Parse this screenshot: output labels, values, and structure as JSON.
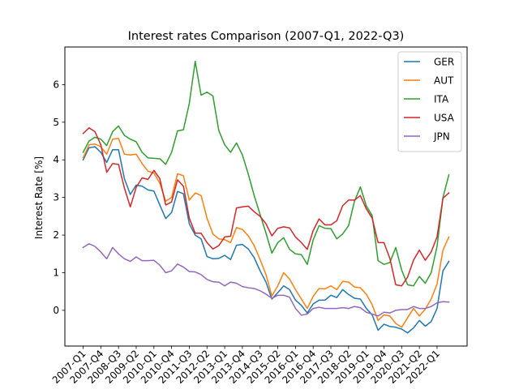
{
  "chart_data": {
    "type": "line",
    "title": "Interest rates Comparison (2007-Q1, 2022-Q3)",
    "xlabel": "",
    "ylabel": "Interest Rate [%]",
    "ylim": [
      -0.95,
      7.0
    ],
    "yticks": [
      0,
      1,
      2,
      3,
      4,
      5,
      6
    ],
    "grid": false,
    "legend_position": "top-right",
    "x": [
      "2007-Q1",
      "2007-Q2",
      "2007-Q3",
      "2007-Q4",
      "2008-Q1",
      "2008-Q2",
      "2008-Q3",
      "2008-Q4",
      "2009-Q1",
      "2009-Q2",
      "2009-Q3",
      "2009-Q4",
      "2010-Q1",
      "2010-Q2",
      "2010-Q3",
      "2010-Q4",
      "2011-Q1",
      "2011-Q2",
      "2011-Q3",
      "2011-Q4",
      "2012-Q1",
      "2012-Q2",
      "2012-Q3",
      "2012-Q4",
      "2013-Q1",
      "2013-Q2",
      "2013-Q3",
      "2013-Q4",
      "2014-Q1",
      "2014-Q2",
      "2014-Q3",
      "2014-Q4",
      "2015-Q1",
      "2015-Q2",
      "2015-Q3",
      "2015-Q4",
      "2016-Q1",
      "2016-Q2",
      "2016-Q3",
      "2016-Q4",
      "2017-Q1",
      "2017-Q2",
      "2017-Q3",
      "2017-Q4",
      "2018-Q1",
      "2018-Q2",
      "2018-Q3",
      "2018-Q4",
      "2019-Q1",
      "2019-Q2",
      "2019-Q3",
      "2019-Q4",
      "2020-Q1",
      "2020-Q2",
      "2020-Q3",
      "2020-Q4",
      "2021-Q1",
      "2021-Q2",
      "2021-Q3",
      "2021-Q4",
      "2022-Q1",
      "2022-Q2",
      "2022-Q3"
    ],
    "xtick_labels": [
      "2007-Q1",
      "2007-Q4",
      "2008-Q3",
      "2009-Q2",
      "2010-Q1",
      "2010-Q4",
      "2011-Q3",
      "2012-Q2",
      "2013-Q1",
      "2013-Q4",
      "2014-Q3",
      "2015-Q2",
      "2016-Q1",
      "2016-Q4",
      "2017-Q3",
      "2018-Q2",
      "2019-Q1",
      "2019-Q4",
      "2020-Q3",
      "2021-Q2",
      "2022-Q1"
    ],
    "series": [
      {
        "name": "GER",
        "color": "#1f77b4",
        "values": [
          4.0,
          4.32,
          4.35,
          4.2,
          3.93,
          4.27,
          4.27,
          3.5,
          3.08,
          3.33,
          3.3,
          3.2,
          3.17,
          2.8,
          2.44,
          2.6,
          3.16,
          3.1,
          2.3,
          2.0,
          1.9,
          1.43,
          1.37,
          1.38,
          1.46,
          1.35,
          1.73,
          1.75,
          1.63,
          1.4,
          1.05,
          0.75,
          0.3,
          0.47,
          0.65,
          0.55,
          0.27,
          0.13,
          -0.07,
          0.17,
          0.27,
          0.27,
          0.4,
          0.34,
          0.55,
          0.42,
          0.32,
          0.3,
          0.05,
          -0.12,
          -0.53,
          -0.37,
          -0.43,
          -0.45,
          -0.5,
          -0.6,
          -0.47,
          -0.27,
          -0.42,
          -0.3,
          0.05,
          1.05,
          1.3
        ]
      },
      {
        "name": "AUT",
        "color": "#ff7f0e",
        "values": [
          4.05,
          4.4,
          4.42,
          4.35,
          4.15,
          4.55,
          4.57,
          4.15,
          4.13,
          4.15,
          3.9,
          3.7,
          3.65,
          3.38,
          2.9,
          3.0,
          3.63,
          3.58,
          2.93,
          3.12,
          3.05,
          2.45,
          2.03,
          1.9,
          1.88,
          1.8,
          2.2,
          2.15,
          1.98,
          1.72,
          1.35,
          0.95,
          0.38,
          0.65,
          1.0,
          0.83,
          0.55,
          0.3,
          0.05,
          0.37,
          0.58,
          0.57,
          0.65,
          0.55,
          0.77,
          0.75,
          0.62,
          0.6,
          0.43,
          0.15,
          -0.27,
          -0.12,
          -0.15,
          -0.35,
          -0.45,
          -0.2,
          0.05,
          -0.15,
          0.03,
          0.3,
          0.7,
          1.6,
          1.95
        ]
      },
      {
        "name": "ITA",
        "color": "#2ca02c",
        "values": [
          4.2,
          4.5,
          4.6,
          4.55,
          4.38,
          4.75,
          4.9,
          4.65,
          4.55,
          4.48,
          4.2,
          4.05,
          4.04,
          4.03,
          3.88,
          4.2,
          4.77,
          4.8,
          5.5,
          6.62,
          5.72,
          5.8,
          5.7,
          4.78,
          4.4,
          4.2,
          4.45,
          4.13,
          3.62,
          3.05,
          2.55,
          2.05,
          1.52,
          1.8,
          1.93,
          1.62,
          1.5,
          1.48,
          1.22,
          1.87,
          2.25,
          2.18,
          2.17,
          1.9,
          2.03,
          2.25,
          2.9,
          3.28,
          2.78,
          2.52,
          1.32,
          1.22,
          1.27,
          1.67,
          1.07,
          0.68,
          0.65,
          0.9,
          0.72,
          1.0,
          1.7,
          3.0,
          3.6
        ]
      },
      {
        "name": "USA",
        "color": "#d62728",
        "values": [
          4.7,
          4.85,
          4.75,
          4.4,
          3.67,
          3.9,
          3.88,
          3.25,
          2.75,
          3.27,
          3.52,
          3.48,
          3.72,
          3.5,
          2.8,
          2.88,
          3.47,
          3.3,
          2.45,
          2.05,
          2.05,
          1.8,
          1.63,
          1.72,
          1.95,
          1.97,
          2.72,
          2.75,
          2.77,
          2.62,
          2.5,
          2.3,
          1.98,
          2.18,
          2.22,
          2.19,
          1.95,
          1.8,
          1.62,
          2.12,
          2.43,
          2.27,
          2.27,
          2.38,
          2.78,
          2.93,
          2.93,
          3.05,
          2.7,
          2.45,
          1.8,
          1.8,
          1.38,
          0.68,
          0.65,
          0.88,
          1.33,
          1.6,
          1.33,
          1.55,
          1.95,
          2.98,
          3.12
        ]
      },
      {
        "name": "JPN",
        "color": "#9467bd",
        "values": [
          1.67,
          1.77,
          1.7,
          1.55,
          1.37,
          1.67,
          1.5,
          1.37,
          1.3,
          1.42,
          1.32,
          1.32,
          1.33,
          1.2,
          1.0,
          1.05,
          1.23,
          1.15,
          1.03,
          1.02,
          0.95,
          0.82,
          0.76,
          0.75,
          0.65,
          0.75,
          0.72,
          0.63,
          0.6,
          0.58,
          0.52,
          0.43,
          0.32,
          0.4,
          0.4,
          0.35,
          0.05,
          -0.13,
          -0.1,
          0.05,
          0.08,
          0.05,
          0.05,
          0.05,
          0.07,
          0.05,
          0.1,
          0.07,
          -0.05,
          -0.1,
          -0.15,
          -0.05,
          -0.07,
          0.0,
          0.02,
          0.02,
          0.1,
          0.05,
          0.05,
          0.1,
          0.2,
          0.23,
          0.22
        ]
      }
    ]
  }
}
